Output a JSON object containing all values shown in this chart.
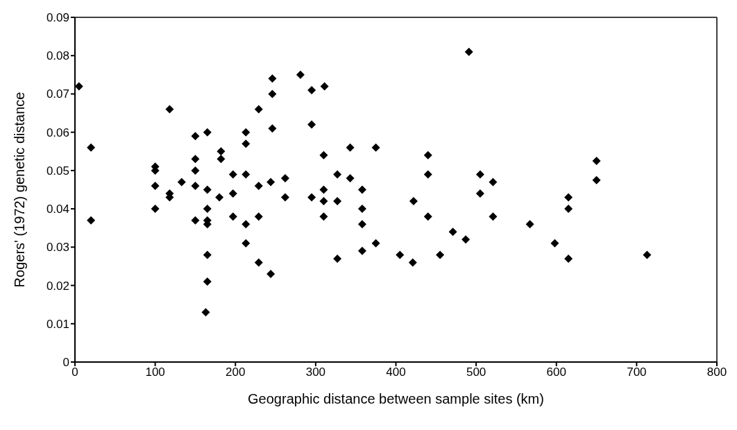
{
  "chart_data": {
    "type": "scatter",
    "xlabel": "Geographic distance between sample sites (km)",
    "ylabel": "Rogers' (1972) genetic distance",
    "marker": "diamond",
    "grid": false,
    "legend": false,
    "xlim": [
      0,
      800
    ],
    "xticks": [
      0,
      100,
      200,
      300,
      400,
      500,
      600,
      700,
      800
    ],
    "ylim": [
      0,
      0.09
    ],
    "yticks": [
      0,
      0.01,
      0.02,
      0.03,
      0.04,
      0.05,
      0.06,
      0.07,
      0.08,
      0.09
    ],
    "series": [
      {
        "color": "#000000",
        "x": [
          5,
          20,
          20,
          100,
          100,
          100,
          100,
          118,
          118,
          118,
          133,
          150,
          150,
          150,
          150,
          150,
          165,
          165,
          165,
          165,
          165,
          165,
          165,
          163,
          182,
          182,
          180,
          197,
          197,
          197,
          213,
          213,
          213,
          213,
          213,
          229,
          229,
          229,
          229,
          246,
          246,
          246,
          244,
          244,
          262,
          262,
          281,
          295,
          295,
          295,
          311,
          310,
          310,
          310,
          310,
          327,
          327,
          327,
          343,
          343,
          358,
          358,
          358,
          358,
          375,
          375,
          405,
          422,
          421,
          440,
          440,
          440,
          455,
          471,
          487,
          491,
          505,
          505,
          521,
          521,
          567,
          598,
          615,
          615,
          615,
          650,
          650,
          713
        ],
        "values": [
          0.072,
          0.056,
          0.037,
          0.051,
          0.05,
          0.046,
          0.04,
          0.066,
          0.044,
          0.043,
          0.047,
          0.059,
          0.053,
          0.05,
          0.046,
          0.037,
          0.06,
          0.045,
          0.04,
          0.037,
          0.036,
          0.028,
          0.021,
          0.013,
          0.055,
          0.053,
          0.043,
          0.049,
          0.044,
          0.038,
          0.06,
          0.057,
          0.049,
          0.036,
          0.031,
          0.066,
          0.046,
          0.038,
          0.026,
          0.074,
          0.07,
          0.061,
          0.047,
          0.023,
          0.048,
          0.043,
          0.075,
          0.071,
          0.062,
          0.043,
          0.072,
          0.054,
          0.045,
          0.042,
          0.038,
          0.049,
          0.042,
          0.027,
          0.056,
          0.048,
          0.045,
          0.04,
          0.036,
          0.029,
          0.056,
          0.031,
          0.028,
          0.042,
          0.026,
          0.054,
          0.049,
          0.038,
          0.028,
          0.034,
          0.032,
          0.081,
          0.049,
          0.044,
          0.047,
          0.038,
          0.036,
          0.031,
          0.043,
          0.04,
          0.027,
          0.0525,
          0.0475,
          0.028
        ]
      }
    ]
  }
}
